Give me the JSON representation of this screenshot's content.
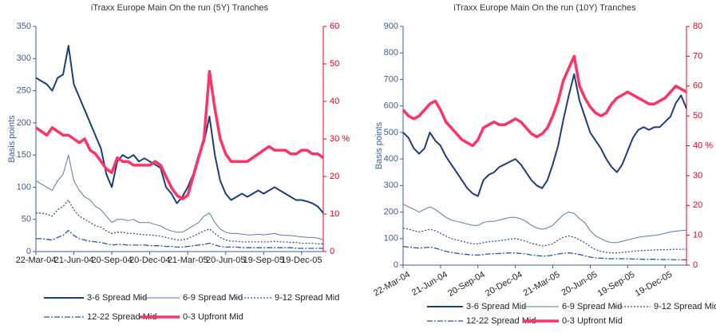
{
  "chart_data": [
    {
      "type": "line",
      "title": "iTraxx Europe Main On the run (5Y) Tranches",
      "y_label": "Basis points",
      "x": [
        "22-Mar-04",
        "4-Apr-04",
        "17-Apr-04",
        "30-Apr-04",
        "13-May-04",
        "26-May-04",
        "8-Jun-04",
        "21-Jun-04",
        "4-Jul-04",
        "17-Jul-04",
        "30-Jul-04",
        "12-Aug-04",
        "25-Aug-04",
        "7-Sep-04",
        "20-Sep-04",
        "3-Oct-04",
        "16-Oct-04",
        "29-Oct-04",
        "11-Nov-04",
        "24-Nov-04",
        "7-Dec-04",
        "20-Dec-04",
        "2-Jan-05",
        "15-Jan-05",
        "28-Jan-05",
        "10-Feb-05",
        "23-Feb-05",
        "8-Mar-05",
        "21-Mar-05",
        "3-Apr-05",
        "16-Apr-05",
        "29-Apr-05",
        "12-May-05",
        "25-May-05",
        "7-Jun-05",
        "20-Jun-05",
        "3-Jul-05",
        "16-Jul-05",
        "29-Jul-05",
        "11-Aug-05",
        "24-Aug-05",
        "6-Sep-05",
        "19-Sep-05",
        "2-Oct-05",
        "15-Oct-05",
        "28-Oct-05",
        "10-Nov-05",
        "23-Nov-05",
        "6-Dec-05",
        "19-Dec-05",
        "1-Jan-06",
        "14-Jan-06",
        "27-Jan-06",
        "9-Feb-06"
      ],
      "xlim": [
        "22-Mar-04",
        "9-Feb-06"
      ],
      "xticks": [
        "22-Mar-04",
        "21-Jun-04",
        "20-Sep-04",
        "20-Dec-04",
        "21-Mar-05",
        "20-Jun-05",
        "19-Sep-05",
        "19-Dec-05"
      ],
      "ylim": [
        0,
        350
      ],
      "yticks": [
        0,
        50,
        100,
        150,
        200,
        250,
        300,
        350
      ],
      "y2lim": [
        0,
        60
      ],
      "y2ticks": [
        0,
        10,
        20,
        {
          "value": 30,
          "label": "30 %"
        },
        40,
        50,
        60
      ],
      "series": [
        {
          "name": "3-6 Spread Mid",
          "color": "#1f3d7a",
          "values": [
            270,
            265,
            260,
            250,
            270,
            275,
            320,
            260,
            240,
            220,
            200,
            180,
            160,
            120,
            100,
            140,
            150,
            145,
            150,
            140,
            145,
            140,
            135,
            130,
            100,
            90,
            75,
            85,
            100,
            120,
            150,
            170,
            210,
            150,
            110,
            90,
            80,
            85,
            90,
            85,
            90,
            95,
            90,
            95,
            100,
            95,
            90,
            85,
            80,
            80,
            78,
            75,
            70,
            60
          ]
        },
        {
          "name": "6-9 Spread Mid",
          "color": "#5a7aa8",
          "values": [
            110,
            105,
            100,
            95,
            110,
            120,
            150,
            110,
            95,
            85,
            80,
            70,
            65,
            55,
            45,
            50,
            50,
            48,
            50,
            45,
            45,
            45,
            42,
            40,
            35,
            32,
            30,
            30,
            35,
            40,
            45,
            55,
            60,
            45,
            35,
            30,
            28,
            28,
            27,
            26,
            26,
            27,
            26,
            27,
            28,
            26,
            25,
            25,
            24,
            23,
            22,
            22,
            21,
            18
          ]
        },
        {
          "name": "9-12 Spread Mid",
          "color": "#2e55a0",
          "values": [
            60,
            60,
            58,
            55,
            65,
            70,
            80,
            65,
            55,
            50,
            45,
            40,
            38,
            32,
            28,
            30,
            30,
            28,
            28,
            27,
            26,
            26,
            25,
            24,
            22,
            20,
            18,
            18,
            20,
            24,
            28,
            32,
            35,
            28,
            22,
            18,
            16,
            16,
            15,
            15,
            15,
            15,
            15,
            15,
            16,
            15,
            15,
            14,
            14,
            13,
            13,
            13,
            12,
            12
          ]
        },
        {
          "name": "12-22 Spread Mid",
          "color": "#2e55a0",
          "values": [
            20,
            20,
            19,
            18,
            22,
            25,
            33,
            25,
            20,
            18,
            16,
            15,
            14,
            12,
            10,
            11,
            11,
            10,
            10,
            10,
            10,
            9,
            9,
            9,
            8,
            8,
            7,
            7,
            8,
            9,
            10,
            11,
            13,
            10,
            8,
            7,
            7,
            7,
            6,
            6,
            6,
            6,
            6,
            6,
            6,
            6,
            6,
            6,
            5,
            5,
            5,
            5,
            5,
            5
          ]
        },
        {
          "name": "0-3 Upfront Mid",
          "color": "#ff3366",
          "axis": "y2",
          "values": [
            33,
            32,
            31,
            33,
            32,
            31,
            31,
            30,
            29,
            30,
            27,
            26,
            24,
            22,
            21,
            25,
            24,
            24,
            23,
            23,
            23,
            23,
            24,
            23,
            20,
            17,
            15,
            14,
            15,
            20,
            25,
            30,
            48,
            38,
            30,
            26,
            24,
            24,
            24,
            24,
            25,
            26,
            27,
            28,
            27,
            27,
            27,
            26,
            26,
            27,
            27,
            26,
            26,
            25
          ]
        }
      ]
    },
    {
      "type": "line",
      "title": "iTraxx Europe Main On the run (10Y) Tranches",
      "y_label": "Basis points",
      "x": [
        "22-Mar-04",
        "4-Apr-04",
        "17-Apr-04",
        "30-Apr-04",
        "13-May-04",
        "26-May-04",
        "8-Jun-04",
        "21-Jun-04",
        "4-Jul-04",
        "17-Jul-04",
        "30-Jul-04",
        "12-Aug-04",
        "25-Aug-04",
        "7-Sep-04",
        "20-Sep-04",
        "3-Oct-04",
        "16-Oct-04",
        "29-Oct-04",
        "11-Nov-04",
        "24-Nov-04",
        "7-Dec-04",
        "20-Dec-04",
        "2-Jan-05",
        "15-Jan-05",
        "28-Jan-05",
        "10-Feb-05",
        "23-Feb-05",
        "8-Mar-05",
        "21-Mar-05",
        "3-Apr-05",
        "16-Apr-05",
        "29-Apr-05",
        "12-May-05",
        "25-May-05",
        "7-Jun-05",
        "20-Jun-05",
        "3-Jul-05",
        "16-Jul-05",
        "29-Jul-05",
        "11-Aug-05",
        "24-Aug-05",
        "6-Sep-05",
        "19-Sep-05",
        "2-Oct-05",
        "15-Oct-05",
        "28-Oct-05",
        "10-Nov-05",
        "23-Nov-05",
        "6-Dec-05",
        "19-Dec-05",
        "1-Jan-06",
        "14-Jan-06",
        "27-Jan-06",
        "9-Feb-06"
      ],
      "xlim": [
        "22-Mar-04",
        "9-Feb-06"
      ],
      "xticks": [
        "22-Mar-04",
        "21-Jun-04",
        "20-Sep-04",
        "20-Dec-04",
        "21-Mar-05",
        "20-Jun-05",
        "19-Sep-05",
        "19-Dec-05"
      ],
      "ylim": [
        0,
        900
      ],
      "yticks": [
        0,
        100,
        200,
        300,
        400,
        500,
        600,
        700,
        800,
        900
      ],
      "y2lim": [
        0,
        80
      ],
      "y2ticks": [
        0,
        10,
        20,
        30,
        {
          "value": 40,
          "label": "40 %"
        },
        50,
        60,
        70,
        80
      ],
      "series": [
        {
          "name": "3-6 Spread Mid",
          "color": "#1f3d7a",
          "values": [
            500,
            480,
            440,
            420,
            440,
            500,
            470,
            450,
            410,
            380,
            350,
            320,
            290,
            270,
            260,
            320,
            340,
            350,
            370,
            380,
            390,
            400,
            380,
            350,
            320,
            300,
            290,
            320,
            380,
            450,
            550,
            640,
            720,
            620,
            560,
            500,
            470,
            440,
            400,
            370,
            350,
            380,
            430,
            480,
            510,
            520,
            510,
            520,
            520,
            540,
            560,
            610,
            640,
            590
          ]
        },
        {
          "name": "6-9 Spread Mid",
          "color": "#5a7aa8",
          "values": [
            230,
            220,
            210,
            200,
            210,
            220,
            210,
            195,
            180,
            170,
            165,
            160,
            155,
            150,
            150,
            160,
            165,
            165,
            170,
            175,
            180,
            180,
            175,
            165,
            150,
            140,
            135,
            140,
            150,
            170,
            190,
            200,
            195,
            175,
            160,
            130,
            110,
            100,
            90,
            85,
            85,
            90,
            95,
            100,
            105,
            108,
            110,
            112,
            115,
            120,
            125,
            128,
            130,
            132
          ]
        },
        {
          "name": "9-12 Spread Mid",
          "color": "#2e55a0",
          "values": [
            140,
            135,
            130,
            125,
            130,
            135,
            130,
            120,
            110,
            100,
            95,
            90,
            85,
            80,
            80,
            85,
            88,
            90,
            92,
            95,
            98,
            100,
            95,
            90,
            82,
            78,
            72,
            75,
            80,
            95,
            105,
            110,
            105,
            95,
            85,
            70,
            58,
            52,
            48,
            46,
            46,
            48,
            50,
            52,
            54,
            55,
            56,
            57,
            58,
            58,
            59,
            60,
            60,
            60
          ]
        },
        {
          "name": "12-22 Spread Mid",
          "color": "#2e55a0",
          "values": [
            70,
            68,
            66,
            64,
            66,
            68,
            64,
            58,
            52,
            48,
            45,
            42,
            40,
            38,
            38,
            40,
            42,
            43,
            44,
            45,
            46,
            46,
            44,
            42,
            38,
            36,
            34,
            35,
            38,
            42,
            45,
            46,
            44,
            40,
            35,
            30,
            27,
            26,
            25,
            24,
            24,
            24,
            24,
            23,
            23,
            22,
            22,
            22,
            21,
            21,
            21,
            20,
            20,
            20
          ]
        },
        {
          "name": "0-3 Upfront Mid",
          "color": "#ff3366",
          "axis": "y2",
          "values": [
            52,
            50,
            49,
            50,
            52,
            54,
            55,
            52,
            48,
            46,
            44,
            42,
            41,
            40,
            42,
            46,
            47,
            48,
            47,
            47,
            48,
            49,
            48,
            46,
            44,
            43,
            44,
            46,
            50,
            55,
            62,
            66,
            70,
            60,
            56,
            53,
            51,
            50,
            51,
            54,
            56,
            57,
            58,
            57,
            56,
            55,
            54,
            54,
            55,
            56,
            58,
            60,
            59,
            58
          ]
        }
      ]
    }
  ]
}
